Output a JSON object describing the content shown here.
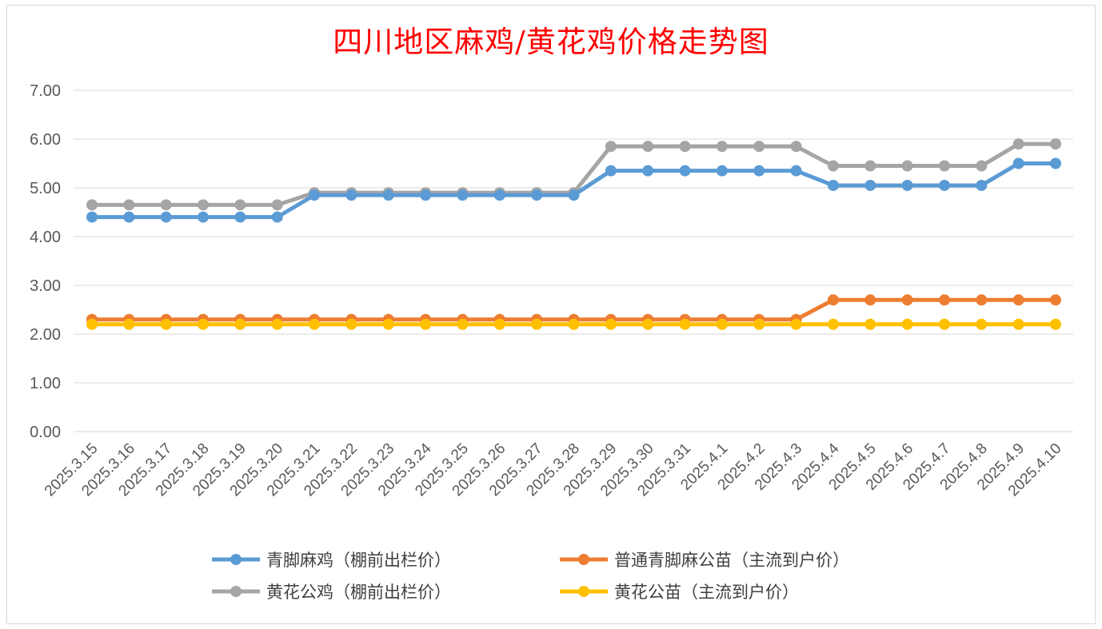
{
  "chart_data": {
    "type": "line",
    "title": "四川地区麻鸡/黄花鸡价格走势图",
    "xlabel": "",
    "ylabel": "",
    "ylim": [
      0,
      7
    ],
    "yticks": [
      "0.00",
      "1.00",
      "2.00",
      "3.00",
      "4.00",
      "5.00",
      "6.00",
      "7.00"
    ],
    "grid": true,
    "legend_position": "bottom",
    "categories": [
      "2025.3.15",
      "2025.3.16",
      "2025.3.17",
      "2025.3.18",
      "2025.3.19",
      "2025.3.20",
      "2025.3.21",
      "2025.3.22",
      "2025.3.23",
      "2025.3.24",
      "2025.3.25",
      "2025.3.26",
      "2025.3.27",
      "2025.3.28",
      "2025.3.29",
      "2025.3.30",
      "2025.3.31",
      "2025.4.1",
      "2025.4.2",
      "2025.4.3",
      "2025.4.4",
      "2025.4.5",
      "2025.4.6",
      "2025.4.7",
      "2025.4.8",
      "2025.4.9",
      "2025.4.10"
    ],
    "series": [
      {
        "name": "青脚麻鸡（棚前出栏价）",
        "color": "#5b9bd5",
        "values": [
          4.4,
          4.4,
          4.4,
          4.4,
          4.4,
          4.4,
          4.85,
          4.85,
          4.85,
          4.85,
          4.85,
          4.85,
          4.85,
          4.85,
          5.35,
          5.35,
          5.35,
          5.35,
          5.35,
          5.35,
          5.05,
          5.05,
          5.05,
          5.05,
          5.05,
          5.5,
          5.5
        ]
      },
      {
        "name": "普通青脚麻公苗（主流到户价）",
        "color": "#ed7d31",
        "values": [
          2.3,
          2.3,
          2.3,
          2.3,
          2.3,
          2.3,
          2.3,
          2.3,
          2.3,
          2.3,
          2.3,
          2.3,
          2.3,
          2.3,
          2.3,
          2.3,
          2.3,
          2.3,
          2.3,
          2.3,
          2.7,
          2.7,
          2.7,
          2.7,
          2.7,
          2.7,
          2.7
        ]
      },
      {
        "name": "黄花公鸡（棚前出栏价）",
        "color": "#a5a5a5",
        "values": [
          4.65,
          4.65,
          4.65,
          4.65,
          4.65,
          4.65,
          4.9,
          4.9,
          4.9,
          4.9,
          4.9,
          4.9,
          4.9,
          4.9,
          5.85,
          5.85,
          5.85,
          5.85,
          5.85,
          5.85,
          5.45,
          5.45,
          5.45,
          5.45,
          5.45,
          5.9,
          5.9
        ]
      },
      {
        "name": "黄花公苗（主流到户价）",
        "color": "#ffc000",
        "values": [
          2.2,
          2.2,
          2.2,
          2.2,
          2.2,
          2.2,
          2.2,
          2.2,
          2.2,
          2.2,
          2.2,
          2.2,
          2.2,
          2.2,
          2.2,
          2.2,
          2.2,
          2.2,
          2.2,
          2.2,
          2.2,
          2.2,
          2.2,
          2.2,
          2.2,
          2.2,
          2.2
        ]
      }
    ],
    "legend_order": [
      0,
      1,
      2,
      3
    ]
  }
}
